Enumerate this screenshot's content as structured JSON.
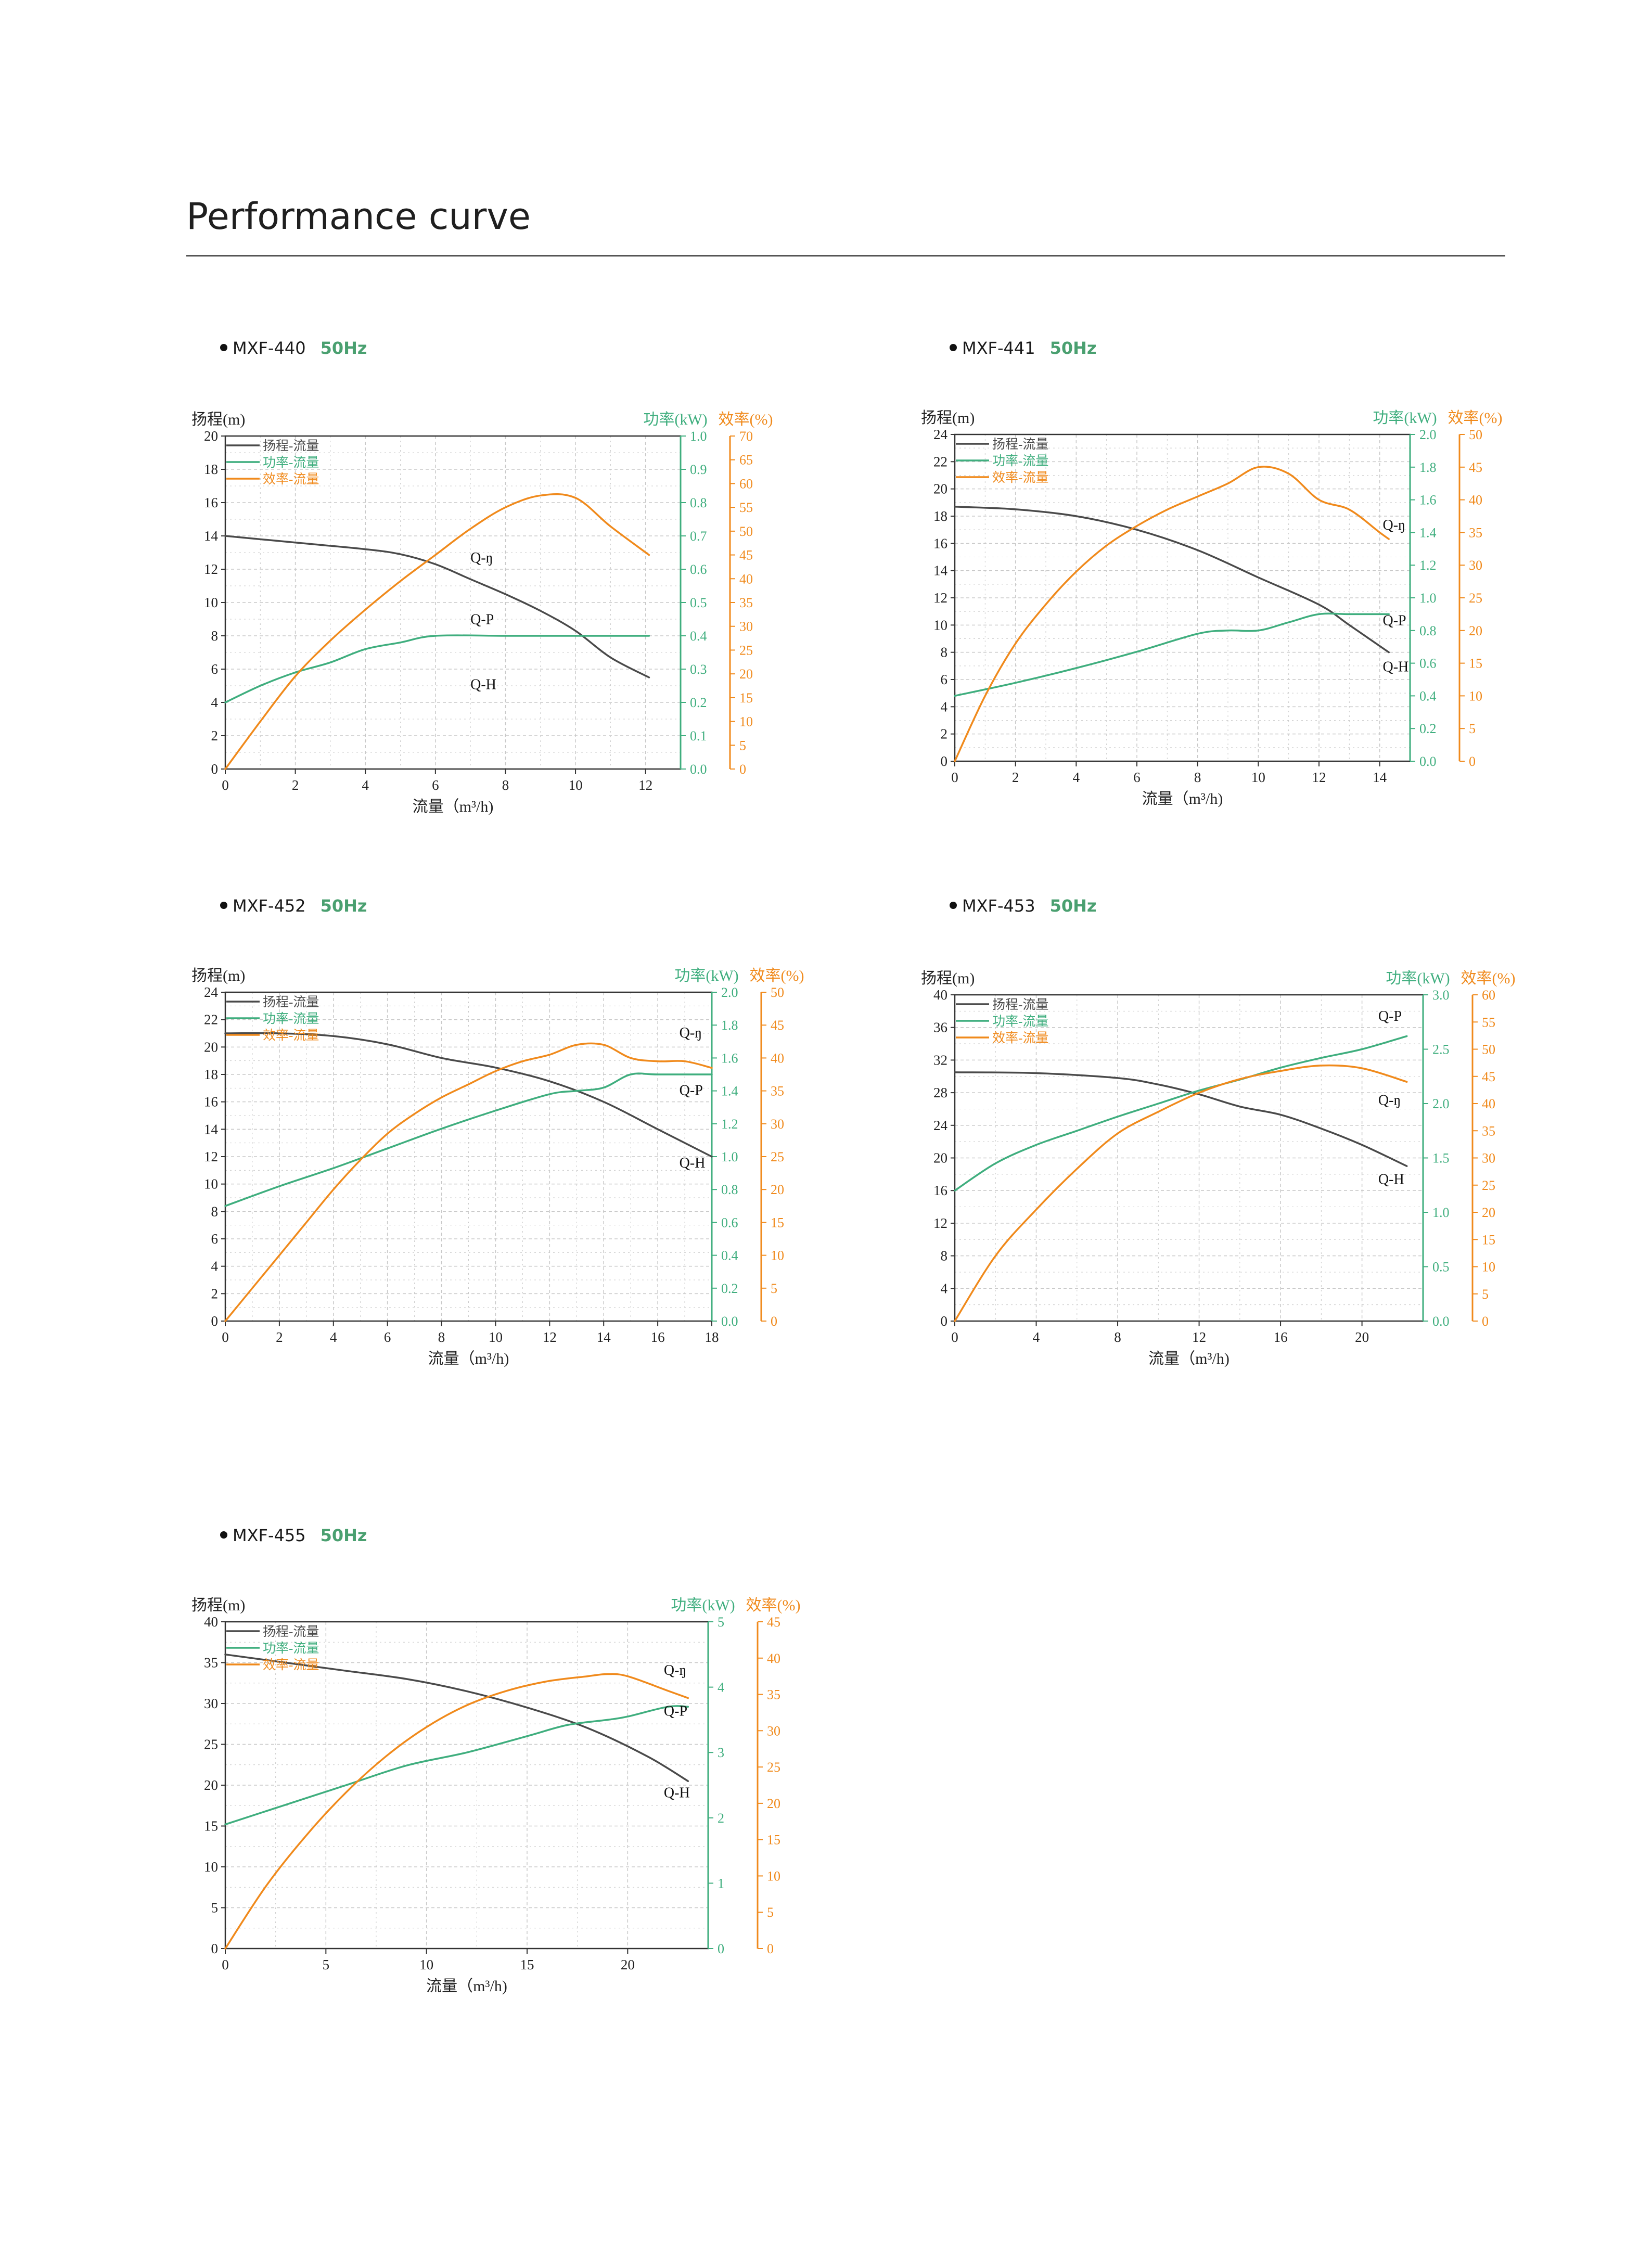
{
  "page": {
    "title": "Performance curve"
  },
  "colors": {
    "head": "#4a4a4a",
    "power": "#3fae7e",
    "eff": "#f08a1c",
    "hz": "#4aa070",
    "grid": "#c8c8c8"
  },
  "legend_labels": {
    "head": "扬程-流量",
    "power": "功率-流量",
    "eff": "效率-流量"
  },
  "axis_titles": {
    "x": "流量（m³/h)",
    "y_head": "扬程(m)",
    "y_power": "功率(kW)",
    "y_eff": "效率(%)"
  },
  "curve_labels": {
    "head": "Q-H",
    "power": "Q-P",
    "eff": "Q-ŋ"
  },
  "chart_data": [
    {
      "model": "MXF-440",
      "freq": "50Hz",
      "type": "line",
      "x_ticks": [
        0,
        2,
        4,
        6,
        8,
        10,
        12
      ],
      "xlim": [
        0,
        13
      ],
      "y_head_ticks": [
        0,
        2,
        4,
        6,
        8,
        10,
        12,
        14,
        16,
        18,
        20
      ],
      "y_head_lim": [
        0,
        20
      ],
      "y_power_ticks": [
        0.0,
        0.1,
        0.2,
        0.3,
        0.4,
        0.5,
        0.6,
        0.7,
        0.8,
        0.9,
        1.0
      ],
      "y_power_lim": [
        0,
        1.0
      ],
      "y_eff_ticks": [
        0,
        5,
        10,
        15,
        20,
        25,
        30,
        35,
        40,
        45,
        50,
        55,
        60,
        65,
        70
      ],
      "y_eff_lim": [
        0,
        70
      ],
      "series": [
        {
          "name": "扬程-流量",
          "axis": "head",
          "x": [
            0,
            2,
            4,
            5,
            6,
            7,
            8,
            9,
            10,
            11,
            12.1
          ],
          "y": [
            14,
            13.6,
            13.2,
            12.9,
            12.3,
            11.4,
            10.5,
            9.5,
            8.3,
            6.7,
            5.5
          ]
        },
        {
          "name": "功率-流量",
          "axis": "power",
          "x": [
            0,
            1,
            2,
            3,
            4,
            5,
            6,
            8,
            10,
            12.1
          ],
          "y": [
            0.2,
            0.25,
            0.29,
            0.32,
            0.36,
            0.38,
            0.4,
            0.4,
            0.4,
            0.4
          ]
        },
        {
          "name": "效率-流量",
          "axis": "eff",
          "x": [
            0,
            1,
            2,
            3,
            4,
            5,
            6,
            7,
            8,
            9,
            10,
            11,
            12.1
          ],
          "y": [
            0,
            10,
            19.5,
            27,
            33.5,
            39.5,
            45,
            50.5,
            55,
            57.5,
            57,
            51,
            45
          ]
        }
      ]
    },
    {
      "model": "MXF-441",
      "freq": "50Hz",
      "type": "line",
      "x_ticks": [
        0,
        2,
        4,
        6,
        8,
        10,
        12,
        14
      ],
      "xlim": [
        0,
        15
      ],
      "y_head_ticks": [
        0,
        2,
        4,
        6,
        8,
        10,
        12,
        14,
        16,
        18,
        20,
        22,
        24
      ],
      "y_head_lim": [
        0,
        24
      ],
      "y_power_ticks": [
        0.0,
        0.2,
        0.4,
        0.6,
        0.8,
        1.0,
        1.2,
        1.4,
        1.6,
        1.8,
        2.0
      ],
      "y_power_lim": [
        0,
        2.0
      ],
      "y_eff_ticks": [
        0,
        5,
        10,
        15,
        20,
        25,
        30,
        35,
        40,
        45,
        50
      ],
      "y_eff_lim": [
        0,
        50
      ],
      "series": [
        {
          "name": "扬程-流量",
          "axis": "head",
          "x": [
            0,
            2,
            4,
            6,
            8,
            10,
            12,
            13,
            14.3
          ],
          "y": [
            18.7,
            18.5,
            18,
            17,
            15.5,
            13.5,
            11.5,
            10,
            8
          ]
        },
        {
          "name": "功率-流量",
          "axis": "power",
          "x": [
            0,
            2,
            4,
            6,
            8,
            9,
            10,
            11,
            12,
            13,
            14.3
          ],
          "y": [
            0.4,
            0.48,
            0.57,
            0.67,
            0.78,
            0.8,
            0.8,
            0.85,
            0.9,
            0.9,
            0.9
          ]
        },
        {
          "name": "效率-流量",
          "axis": "eff",
          "x": [
            0,
            1,
            2,
            3,
            4,
            5,
            6,
            7,
            8,
            9,
            10,
            11,
            12,
            13,
            14,
            14.3
          ],
          "y": [
            0,
            10,
            18,
            24,
            29,
            33,
            36,
            38.5,
            40.5,
            42.5,
            45,
            44,
            40,
            38.5,
            35,
            34
          ]
        }
      ]
    },
    {
      "model": "MXF-452",
      "freq": "50Hz",
      "type": "line",
      "x_ticks": [
        0,
        2,
        4,
        6,
        8,
        10,
        12,
        14,
        16,
        18
      ],
      "xlim": [
        0,
        18
      ],
      "y_head_ticks": [
        0,
        2,
        4,
        6,
        8,
        10,
        12,
        14,
        16,
        18,
        20,
        22,
        24
      ],
      "y_head_lim": [
        0,
        24
      ],
      "y_power_ticks": [
        0.0,
        0.2,
        0.4,
        0.6,
        0.8,
        1.0,
        1.2,
        1.4,
        1.6,
        1.8,
        2.0
      ],
      "y_power_lim": [
        0,
        2.0
      ],
      "y_eff_ticks": [
        0,
        5,
        10,
        15,
        20,
        25,
        30,
        35,
        40,
        45,
        50
      ],
      "y_eff_lim": [
        0,
        50
      ],
      "series": [
        {
          "name": "扬程-流量",
          "axis": "head",
          "x": [
            0,
            2,
            4,
            6,
            8,
            10,
            12,
            14,
            16,
            18
          ],
          "y": [
            21,
            21,
            20.8,
            20.2,
            19.2,
            18.5,
            17.5,
            16,
            14,
            12
          ]
        },
        {
          "name": "功率-流量",
          "axis": "power",
          "x": [
            0,
            2,
            4,
            6,
            8,
            10,
            12,
            13,
            14,
            15,
            16,
            18
          ],
          "y": [
            0.7,
            0.82,
            0.93,
            1.05,
            1.17,
            1.28,
            1.38,
            1.4,
            1.42,
            1.5,
            1.5,
            1.5
          ]
        },
        {
          "name": "效率-流量",
          "axis": "eff",
          "x": [
            0,
            1,
            2,
            3,
            4,
            5,
            6,
            7,
            8,
            9,
            10,
            11,
            12,
            13,
            14,
            15,
            16,
            17,
            18
          ],
          "y": [
            0,
            5,
            10,
            15,
            20,
            24.5,
            28.5,
            31.5,
            34,
            36,
            38,
            39.5,
            40.5,
            42,
            42,
            40,
            39.5,
            39.5,
            38.5
          ]
        }
      ]
    },
    {
      "model": "MXF-453",
      "freq": "50Hz",
      "type": "line",
      "x_ticks": [
        0,
        4,
        8,
        12,
        16,
        20
      ],
      "xlim": [
        0,
        23
      ],
      "y_head_ticks": [
        0,
        4,
        8,
        12,
        16,
        20,
        24,
        28,
        32,
        36,
        40
      ],
      "y_head_lim": [
        0,
        40
      ],
      "y_power_ticks": [
        0.0,
        0.5,
        1.0,
        1.5,
        2.0,
        2.5,
        3.0
      ],
      "y_power_lim": [
        0,
        3.0
      ],
      "y_eff_ticks": [
        0,
        5,
        10,
        15,
        20,
        25,
        30,
        35,
        40,
        45,
        50,
        55,
        60
      ],
      "y_eff_lim": [
        0,
        60
      ],
      "series": [
        {
          "name": "扬程-流量",
          "axis": "head",
          "x": [
            0,
            4,
            8,
            10,
            12,
            14,
            16,
            18,
            20,
            22.2
          ],
          "y": [
            30.5,
            30.4,
            29.8,
            29,
            27.8,
            26.3,
            25.3,
            23.6,
            21.6,
            19
          ]
        },
        {
          "name": "功率-流量",
          "axis": "power",
          "x": [
            0,
            2,
            4,
            6,
            8,
            10,
            12,
            14,
            16,
            18,
            20,
            22.2
          ],
          "y": [
            1.2,
            1.45,
            1.62,
            1.75,
            1.88,
            2.0,
            2.12,
            2.22,
            2.33,
            2.42,
            2.5,
            2.62
          ]
        },
        {
          "name": "效率-流量",
          "axis": "eff",
          "x": [
            0,
            2,
            4,
            6,
            8,
            10,
            12,
            14,
            16,
            18,
            20,
            22.2
          ],
          "y": [
            0,
            12,
            20.5,
            28,
            34.5,
            38.5,
            42,
            44.5,
            46,
            47,
            46.5,
            44
          ]
        }
      ]
    },
    {
      "model": "MXF-455",
      "freq": "50Hz",
      "type": "line",
      "x_ticks": [
        0,
        5,
        10,
        15,
        20
      ],
      "xlim": [
        0,
        24
      ],
      "y_head_ticks": [
        0,
        5,
        10,
        15,
        20,
        25,
        30,
        35,
        40
      ],
      "y_head_lim": [
        0,
        40
      ],
      "y_power_ticks": [
        0,
        1,
        2,
        3,
        4,
        5
      ],
      "y_power_lim": [
        0,
        5
      ],
      "y_eff_ticks": [
        0,
        5,
        10,
        15,
        20,
        25,
        30,
        35,
        40,
        45
      ],
      "y_eff_lim": [
        0,
        45
      ],
      "series": [
        {
          "name": "扬程-流量",
          "axis": "head",
          "x": [
            0,
            3,
            6,
            9,
            12,
            15,
            18,
            21,
            23
          ],
          "y": [
            36,
            35,
            34,
            33,
            31.5,
            29.5,
            27,
            23.5,
            20.5
          ]
        },
        {
          "name": "功率-流量",
          "axis": "power",
          "x": [
            0,
            3,
            6,
            9,
            12,
            15,
            17,
            19,
            20,
            22,
            23
          ],
          "y": [
            1.9,
            2.2,
            2.5,
            2.8,
            3.0,
            3.25,
            3.42,
            3.5,
            3.55,
            3.7,
            3.7
          ]
        },
        {
          "name": "效率-流量",
          "axis": "eff",
          "x": [
            0,
            2,
            4,
            6,
            8,
            10,
            12,
            14,
            16,
            18,
            19,
            20,
            22,
            23
          ],
          "y": [
            0,
            8.5,
            15.5,
            21.5,
            26.5,
            30.5,
            33.5,
            35.5,
            36.8,
            37.5,
            37.8,
            37.5,
            35.5,
            34.5
          ]
        }
      ]
    }
  ]
}
